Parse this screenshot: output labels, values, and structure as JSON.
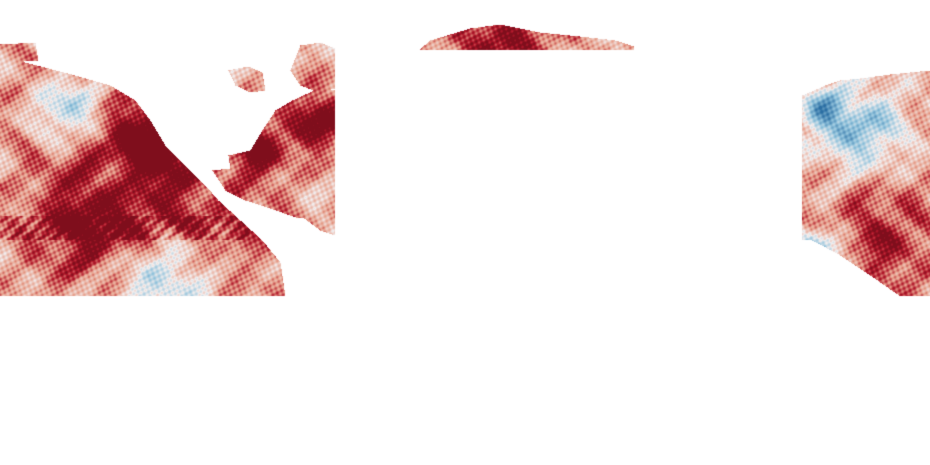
{
  "map": {
    "type": "sea-surface-temperature-anomaly",
    "projection": "equirectangular",
    "colors": {
      "background": "#ffffff",
      "strong_cold": "#2b6ea3",
      "cold": "#92c3dc",
      "neutral": "#f3eeee",
      "warm": "#e7a08c",
      "strong_warm": "#b2182b",
      "very_strong_warm": "#7f0e1c"
    },
    "legend": null
  }
}
